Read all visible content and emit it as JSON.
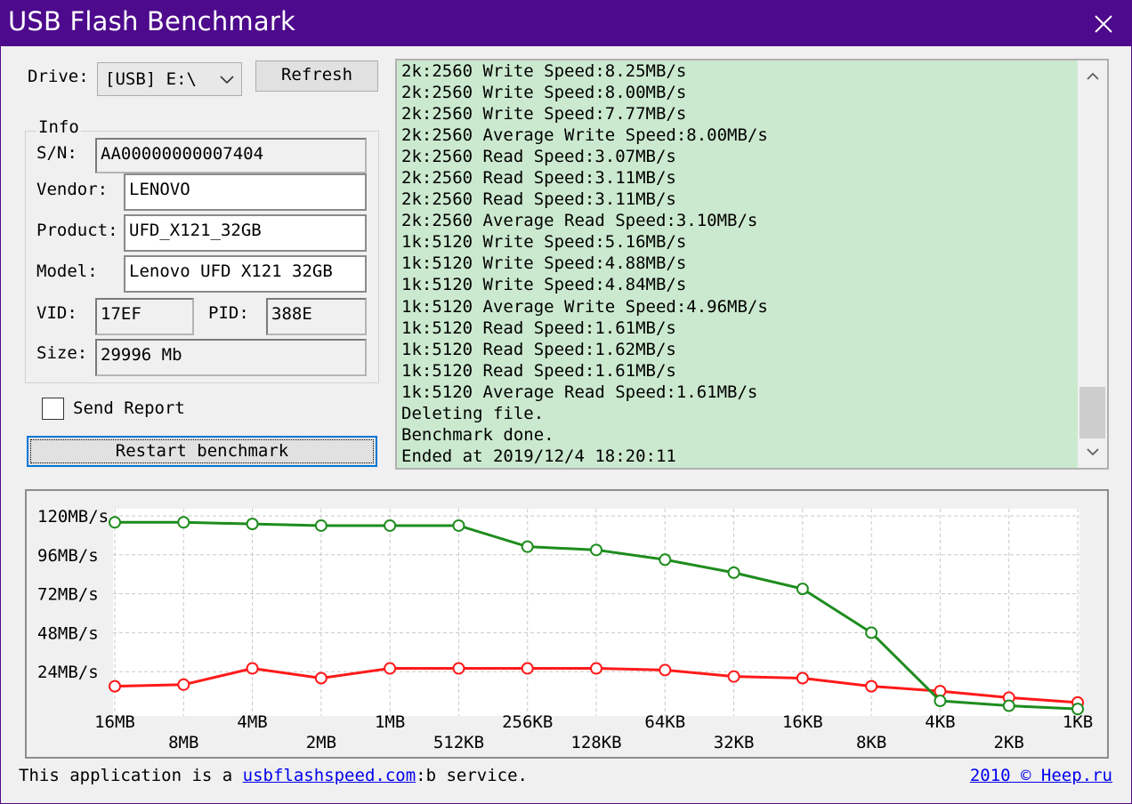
{
  "window": {
    "title": "USB Flash Benchmark"
  },
  "drive": {
    "label": "Drive:",
    "value": "[USB] E:\\",
    "refresh_label": "Refresh"
  },
  "info": {
    "group_label": "Info",
    "sn_label": "S/N:",
    "sn_value": "AA00000000007404",
    "vendor_label": "Vendor:",
    "vendor_value": "LENOVO",
    "product_label": "Product:",
    "product_value": "UFD_X121_32GB",
    "model_label": "Model:",
    "model_value": "Lenovo UFD X121 32GB",
    "vid_label": "VID:",
    "vid_value": "17EF",
    "pid_label": "PID:",
    "pid_value": "388E",
    "size_label": "Size:",
    "size_value": "29996 Mb"
  },
  "send_report": {
    "label": "Send Report",
    "checked": false
  },
  "restart_label": "Restart benchmark",
  "log": {
    "lines": [
      "2k:2560 Write Speed:8.25MB/s",
      "2k:2560 Write Speed:8.00MB/s",
      "2k:2560 Write Speed:7.77MB/s",
      "2k:2560 Average Write Speed:8.00MB/s",
      "2k:2560 Read Speed:3.07MB/s",
      "2k:2560 Read Speed:3.11MB/s",
      "2k:2560 Read Speed:3.11MB/s",
      "2k:2560 Average Read Speed:3.10MB/s",
      "1k:5120 Write Speed:5.16MB/s",
      "1k:5120 Write Speed:4.88MB/s",
      "1k:5120 Write Speed:4.84MB/s",
      "1k:5120 Average Write Speed:4.96MB/s",
      "1k:5120 Read Speed:1.61MB/s",
      "1k:5120 Read Speed:1.62MB/s",
      "1k:5120 Read Speed:1.61MB/s",
      "1k:5120 Average Read Speed:1.61MB/s",
      "Deleting file.",
      "Benchmark done.",
      "Ended at 2019/12/4 18:20:11"
    ]
  },
  "chart_data": {
    "type": "line",
    "categories": [
      "16MB",
      "8MB",
      "4MB",
      "2MB",
      "1MB",
      "512KB",
      "256KB",
      "128KB",
      "64KB",
      "32KB",
      "16KB",
      "8KB",
      "4KB",
      "2KB",
      "1KB"
    ],
    "y_tick_labels": [
      "120MB/s",
      "96MB/s",
      "72MB/s",
      "48MB/s",
      "24MB/s"
    ],
    "y_ticks": [
      120,
      96,
      72,
      48,
      24
    ],
    "ylim": [
      0,
      120
    ],
    "grid": true,
    "series": [
      {
        "color": "#1e8c1e",
        "values": [
          116,
          116,
          115,
          114,
          114,
          114,
          101,
          99,
          93,
          85,
          75,
          48,
          6,
          3,
          1
        ]
      },
      {
        "color": "#ff1a1a",
        "values": [
          15,
          16,
          26,
          20,
          26,
          26,
          26,
          26,
          25,
          21,
          20,
          15,
          12,
          8,
          5
        ]
      }
    ]
  },
  "footer": {
    "prefix": "This application is a",
    "link": "usbflashspeed.com",
    "suffix": ":b service.",
    "right_link": "2010 © Heep.ru"
  }
}
